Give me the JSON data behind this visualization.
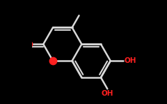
{
  "bg_color": "#000000",
  "bond_color": "#d8d8d8",
  "oxygen_color": "#ff2020",
  "bond_lw": 1.8,
  "dbl_off": 0.025,
  "dbl_shrink": 0.018,
  "oh_fontsize": 7.5,
  "figsize": [
    2.4,
    1.49
  ],
  "dpi": 100,
  "xlim": [
    0.0,
    1.0
  ],
  "ylim": [
    0.0,
    1.0
  ]
}
